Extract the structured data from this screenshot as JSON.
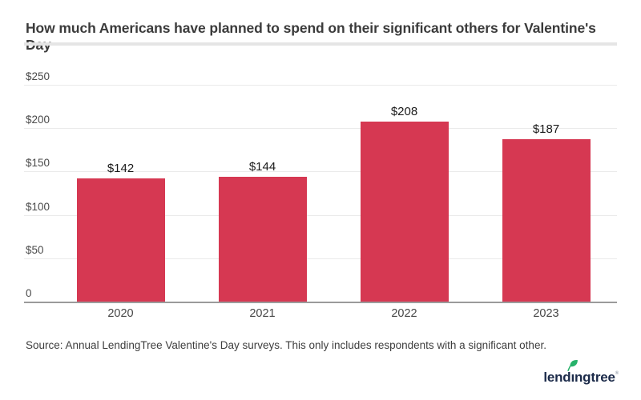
{
  "title": "How much Americans have planned to spend on their significant others for Valentine's Day",
  "source_note": "Source: Annual LendingTree Valentine's Day surveys. This only includes respondents with a significant other.",
  "logo": {
    "text": "lendingtree",
    "trademark": "®",
    "leaf_icon": "leaf-icon"
  },
  "colors": {
    "bar": "#d63852",
    "gridline": "#eaeaea",
    "axis_line": "#9b9b9b",
    "title_text": "#3b3b3b",
    "tick_text": "#4a4a4a",
    "value_text": "#1a1a1a",
    "logo_navy": "#1b2a49",
    "leaf_green": "#27b26a"
  },
  "chart_data": {
    "type": "bar",
    "title": "How much Americans have planned to spend on their significant others for Valentine's Day",
    "categories": [
      "2020",
      "2021",
      "2022",
      "2023"
    ],
    "values": [
      142,
      144,
      208,
      187
    ],
    "value_labels": [
      "$142",
      "$144",
      "$208",
      "$187"
    ],
    "xlabel": "",
    "ylabel": "",
    "ylim": [
      0,
      250
    ],
    "yticks": [
      {
        "label": "$250",
        "value": 250
      },
      {
        "label": "$200",
        "value": 200
      },
      {
        "label": "$150",
        "value": 150
      },
      {
        "label": "$100",
        "value": 100
      },
      {
        "label": "$50",
        "value": 50
      },
      {
        "label": "0",
        "value": 0
      }
    ],
    "grid": true,
    "legend": false,
    "bar_color": "#d63852"
  }
}
